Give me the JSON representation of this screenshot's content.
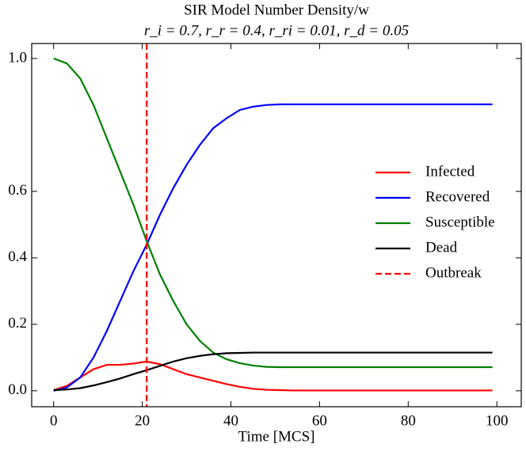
{
  "chart_data": {
    "type": "line",
    "title": "SIR Model Number Density/w",
    "subtitle": "r_i = 0.7, r_r = 0.4, r_ri = 0.01, r_d = 0.05",
    "x_label": "Time [MCS]",
    "x": [
      0,
      3,
      6,
      9,
      12,
      15,
      18,
      21,
      24,
      27,
      30,
      33,
      36,
      39,
      42,
      45,
      48,
      51,
      54,
      57,
      60,
      63,
      66,
      69,
      72,
      75,
      78,
      81,
      84,
      87,
      90,
      93,
      96,
      99
    ],
    "series": [
      {
        "name": "Infected",
        "color": "#ff0000",
        "values": [
          0.002,
          0.015,
          0.04,
          0.065,
          0.078,
          0.078,
          0.082,
          0.088,
          0.08,
          0.065,
          0.05,
          0.04,
          0.03,
          0.02,
          0.012,
          0.006,
          0.003,
          0.002,
          0.001,
          0.001,
          0.001,
          0.001,
          0.001,
          0.001,
          0.001,
          0.001,
          0.001,
          0.001,
          0.001,
          0.001,
          0.001,
          0.001,
          0.001,
          0.001
        ]
      },
      {
        "name": "Recovered",
        "color": "#0000ff",
        "values": [
          0,
          0.01,
          0.04,
          0.1,
          0.18,
          0.27,
          0.36,
          0.44,
          0.53,
          0.61,
          0.68,
          0.74,
          0.79,
          0.82,
          0.845,
          0.855,
          0.86,
          0.862,
          0.862,
          0.862,
          0.862,
          0.862,
          0.862,
          0.862,
          0.862,
          0.862,
          0.862,
          0.862,
          0.862,
          0.862,
          0.862,
          0.862,
          0.862,
          0.862
        ]
      },
      {
        "name": "Susceptible",
        "color": "#008000",
        "values": [
          1.0,
          0.985,
          0.94,
          0.86,
          0.76,
          0.66,
          0.56,
          0.45,
          0.35,
          0.27,
          0.2,
          0.15,
          0.115,
          0.095,
          0.083,
          0.076,
          0.072,
          0.071,
          0.071,
          0.071,
          0.071,
          0.071,
          0.071,
          0.071,
          0.071,
          0.071,
          0.071,
          0.071,
          0.071,
          0.071,
          0.071,
          0.071,
          0.071,
          0.071
        ]
      },
      {
        "name": "Dead",
        "color": "#000000",
        "values": [
          0.002,
          0.004,
          0.008,
          0.016,
          0.026,
          0.037,
          0.05,
          0.062,
          0.075,
          0.088,
          0.098,
          0.105,
          0.11,
          0.113,
          0.114,
          0.115,
          0.115,
          0.115,
          0.115,
          0.115,
          0.115,
          0.115,
          0.115,
          0.115,
          0.115,
          0.115,
          0.115,
          0.115,
          0.115,
          0.115,
          0.115,
          0.115,
          0.115,
          0.115
        ]
      }
    ],
    "vline": {
      "name": "Outbreak",
      "color": "#ff0000",
      "x": 21
    },
    "xlim": [
      -4.95,
      105.5
    ],
    "ylim": [
      -0.048,
      1.045
    ],
    "xticks": [
      0,
      20,
      40,
      60,
      80,
      100
    ],
    "yticks": [
      {
        "value": 0,
        "label": "0.0"
      },
      0.2,
      0.4,
      0.6,
      {
        "value": 1,
        "label": "1.0"
      }
    ],
    "legend": "right"
  }
}
